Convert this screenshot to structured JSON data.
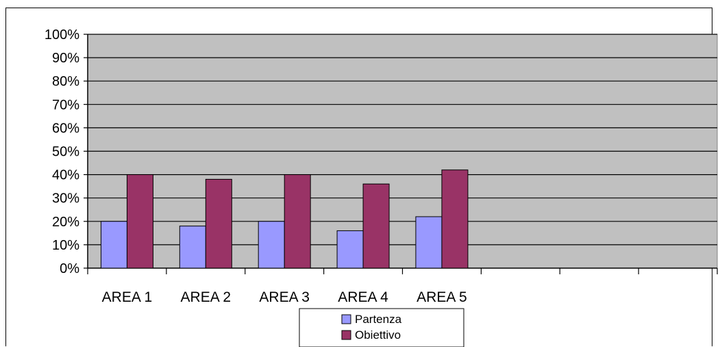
{
  "colors": {
    "plot_background": "#c0c0c0",
    "partenza": "#9999ff",
    "obiettivo": "#993366",
    "gridline": "#000000"
  },
  "chart_data": {
    "type": "bar",
    "title": "",
    "xlabel": "",
    "ylabel": "",
    "categories": [
      "AREA 1",
      "AREA 2",
      "AREA 3",
      "AREA 4",
      "AREA 5",
      "",
      "",
      ""
    ],
    "series": [
      {
        "name": "Partenza",
        "values": [
          0.2,
          0.18,
          0.2,
          0.16,
          0.22,
          null,
          null,
          null
        ]
      },
      {
        "name": "Obiettivo",
        "values": [
          0.4,
          0.38,
          0.4,
          0.36,
          0.42,
          null,
          null,
          null
        ]
      }
    ],
    "ylim": [
      0,
      1
    ],
    "yticks": [
      "0%",
      "10%",
      "20%",
      "30%",
      "40%",
      "50%",
      "60%",
      "70%",
      "80%",
      "90%",
      "100%"
    ],
    "grid": true,
    "legend_position": "bottom"
  }
}
